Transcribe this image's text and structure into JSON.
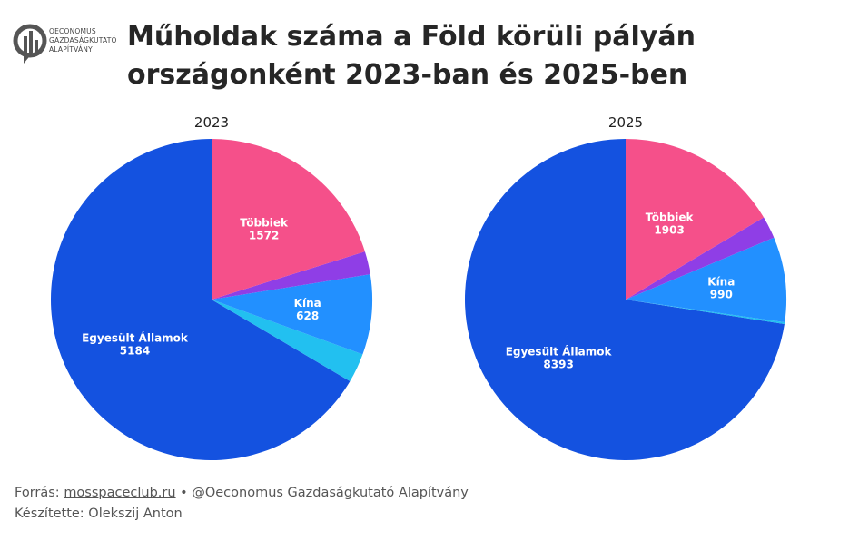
{
  "logo": {
    "lines": [
      "OECONOMUS",
      "GAZDASÁGKUTATÓ",
      "ALAPÍTVÁNY"
    ],
    "color": "#555555"
  },
  "title": {
    "line1": "Műholdak száma a Föld körüli pályán",
    "line2": "országonként 2023-ban és 2025-ben"
  },
  "chart_data": [
    {
      "type": "pie",
      "title": "2023",
      "slices": [
        {
          "label": "Egyesült Államok",
          "value": 5184,
          "color": "#1452e0",
          "show_label": true
        },
        {
          "label": "",
          "value": 230,
          "color": "#22c0f0",
          "show_label": false
        },
        {
          "label": "Kína",
          "value": 628,
          "color": "#2290ff",
          "show_label": true
        },
        {
          "label": "",
          "value": 180,
          "color": "#8f3ee6",
          "show_label": false
        },
        {
          "label": "Többiek",
          "value": 1572,
          "color": "#f5508a",
          "show_label": true
        }
      ]
    },
    {
      "type": "pie",
      "title": "2025",
      "slices": [
        {
          "label": "Egyesült Államok",
          "value": 8393,
          "color": "#1452e0",
          "show_label": true
        },
        {
          "label": "",
          "value": 20,
          "color": "#22c0f0",
          "show_label": false
        },
        {
          "label": "Kína",
          "value": 990,
          "color": "#2290ff",
          "show_label": true
        },
        {
          "label": "",
          "value": 260,
          "color": "#8f3ee6",
          "show_label": false
        },
        {
          "label": "Többiek",
          "value": 1903,
          "color": "#f5508a",
          "show_label": true
        }
      ]
    }
  ],
  "footer": {
    "source_prefix": "Forrás:",
    "source_link": "mosspaceclub.ru",
    "source_suffix": "• @Oeconomus Gazdaságkutató Alapítvány",
    "author": "Készítette: Olekszij Anton"
  }
}
